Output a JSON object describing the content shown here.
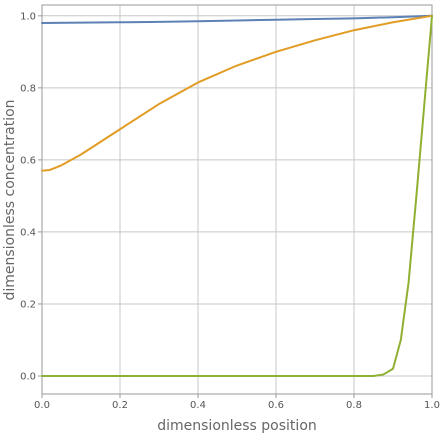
{
  "chart_data": {
    "type": "line",
    "title": "",
    "xlabel": "dimensionless position",
    "ylabel": "dimensionless concentration",
    "xlim": [
      0,
      1
    ],
    "ylim": [
      -0.05,
      1.03
    ],
    "grid": true,
    "x_ticks": [
      0,
      0.2,
      0.4,
      0.6,
      0.8,
      1
    ],
    "x_tick_labels": [
      "0.0",
      "0.2",
      "0.4",
      "0.6",
      "0.8",
      "1.0"
    ],
    "y_ticks": [
      0,
      0.2,
      0.4,
      0.6,
      0.8,
      1
    ],
    "y_tick_labels": [
      "0.0",
      "0.2",
      "0.4",
      "0.6",
      "0.8",
      "1.0"
    ],
    "series": [
      {
        "color": "#5e81b5",
        "x": [
          0,
          0.1,
          0.2,
          0.3,
          0.4,
          0.5,
          0.6,
          0.7,
          0.8,
          0.9,
          1.0
        ],
        "y": [
          0.98,
          0.981,
          0.982,
          0.983,
          0.985,
          0.987,
          0.989,
          0.991,
          0.993,
          0.996,
          1.0
        ]
      },
      {
        "color": "#e19c24",
        "x": [
          0,
          0.02,
          0.05,
          0.1,
          0.15,
          0.2,
          0.3,
          0.4,
          0.5,
          0.6,
          0.7,
          0.8,
          0.9,
          1.0
        ],
        "y": [
          0.57,
          0.572,
          0.585,
          0.615,
          0.65,
          0.685,
          0.755,
          0.815,
          0.862,
          0.9,
          0.932,
          0.96,
          0.982,
          1.0
        ]
      },
      {
        "color": "#8fb032",
        "x": [
          0,
          0.1,
          0.2,
          0.3,
          0.4,
          0.5,
          0.6,
          0.7,
          0.8,
          0.85,
          0.875,
          0.9,
          0.92,
          0.94,
          0.96,
          0.98,
          1.0
        ],
        "y": [
          0,
          0,
          0,
          0,
          0,
          0,
          0,
          0,
          0,
          0.0,
          0.004,
          0.02,
          0.1,
          0.26,
          0.5,
          0.75,
          1.0
        ]
      }
    ]
  }
}
